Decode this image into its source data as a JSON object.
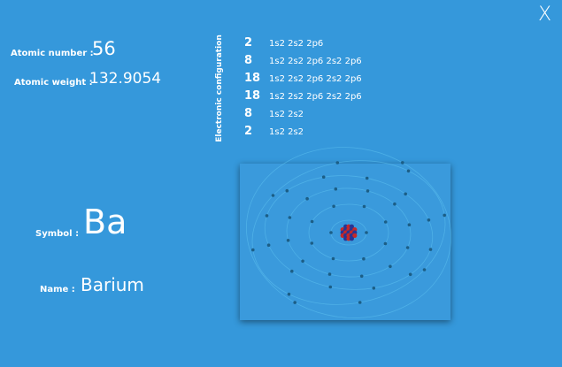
{
  "close_label": "X",
  "atomic_number": {
    "label": "Atomic number :",
    "value": "56"
  },
  "atomic_weight": {
    "label": "Atomic weight :",
    "value": "132.9054"
  },
  "config": {
    "title": "Electronic configuration",
    "shells": [
      {
        "count": "2",
        "orbitals": "1s2 2s2 2p6"
      },
      {
        "count": "8",
        "orbitals": "1s2 2s2 2p6 2s2 2p6"
      },
      {
        "count": "18",
        "orbitals": "1s2 2s2 2p6 2s2 2p6"
      },
      {
        "count": "18",
        "orbitals": "1s2 2s2 2p6 2s2 2p6"
      },
      {
        "count": "8",
        "orbitals": "1s2 2s2"
      },
      {
        "count": "2",
        "orbitals": "1s2 2s2"
      }
    ]
  },
  "symbol": {
    "label": "Symbol :",
    "value": "Ba"
  },
  "name": {
    "label": "Name :",
    "value": "Barium"
  },
  "colors": {
    "background": "#3598db",
    "panel": "#3a9adc",
    "orbit": "#5fc2f0",
    "electron": "#1c5e86",
    "proton": "#c62828",
    "neutron": "#283593"
  }
}
